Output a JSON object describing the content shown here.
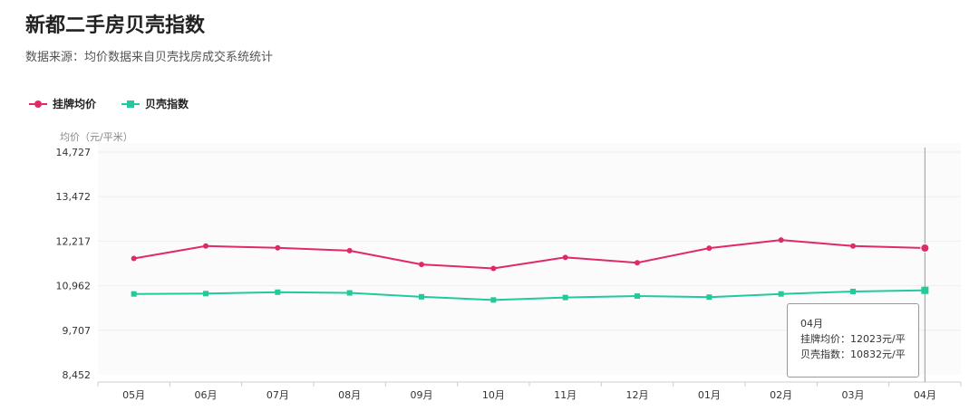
{
  "title": "新都二手房贝壳指数",
  "subtitle": "数据来源：均价数据来自贝壳找房成交系统统计",
  "colors": {
    "listing": "#e0286b",
    "index": "#22c99a",
    "grid": "#eeeeee",
    "axis": "#cccccc"
  },
  "legend": [
    {
      "label": "挂牌均价",
      "icon": "circle-marker-icon"
    },
    {
      "label": "贝壳指数",
      "icon": "square-marker-icon"
    }
  ],
  "tooltip": {
    "month": "04月",
    "line1": "挂牌均价：12023元/平",
    "line2": "贝壳指数：10832元/平"
  },
  "chart_data": {
    "type": "line",
    "title": "新都二手房贝壳指数",
    "ylabel": "均价（元/平米）",
    "xlabel": "",
    "categories": [
      "05月",
      "06月",
      "07月",
      "08月",
      "09月",
      "10月",
      "11月",
      "12月",
      "01月",
      "02月",
      "03月",
      "04月"
    ],
    "yticks": [
      "14,727",
      "13,472",
      "12,217",
      "10,962",
      "9,707",
      "8,452"
    ],
    "ylim": [
      8452,
      14727
    ],
    "grid": true,
    "legend_position": "top-left",
    "series": [
      {
        "name": "挂牌均价",
        "values": [
          11730,
          12080,
          12030,
          11950,
          11560,
          11450,
          11760,
          11610,
          12020,
          12250,
          12080,
          12023
        ]
      },
      {
        "name": "贝壳指数",
        "values": [
          10730,
          10740,
          10780,
          10760,
          10650,
          10560,
          10630,
          10670,
          10640,
          10730,
          10800,
          10832
        ]
      }
    ]
  }
}
